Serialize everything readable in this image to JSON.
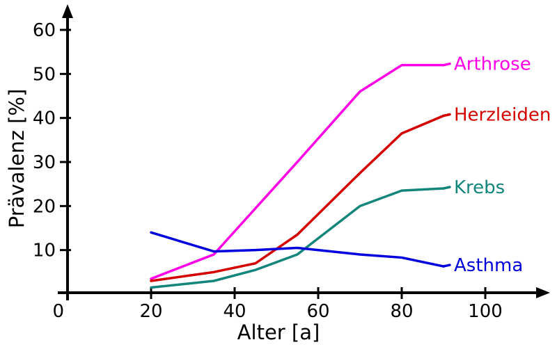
{
  "chart_data": {
    "type": "line",
    "title": "",
    "xlabel": "Alter [a]",
    "ylabel": "Prävalenz [%]",
    "origin_label": "0",
    "x_ticks": [
      20,
      40,
      60,
      80,
      100
    ],
    "y_ticks": [
      10,
      20,
      30,
      40,
      50,
      60
    ],
    "xlim": [
      0,
      115
    ],
    "ylim": [
      0,
      65
    ],
    "grid": false,
    "legend_position": "inline-right-labels",
    "x": [
      20,
      35,
      45,
      55,
      70,
      80,
      90
    ],
    "series": [
      {
        "name": "Arthrose",
        "color": "#ff00e6",
        "values": [
          3.5,
          9,
          19.5,
          30,
          46,
          52,
          52
        ]
      },
      {
        "name": "Herzleiden",
        "color": "#d40000",
        "values": [
          3,
          5,
          7,
          13.5,
          27.5,
          36.5,
          40.5
        ]
      },
      {
        "name": "Krebs",
        "color": "#13857a",
        "values": [
          1.5,
          3,
          5.5,
          9,
          20,
          23.5,
          24
        ]
      },
      {
        "name": "Asthma",
        "color": "#0000dd",
        "values": [
          14,
          9.7,
          10,
          10.5,
          9,
          8.3,
          6.3
        ]
      }
    ],
    "axis_color": "#000000"
  }
}
